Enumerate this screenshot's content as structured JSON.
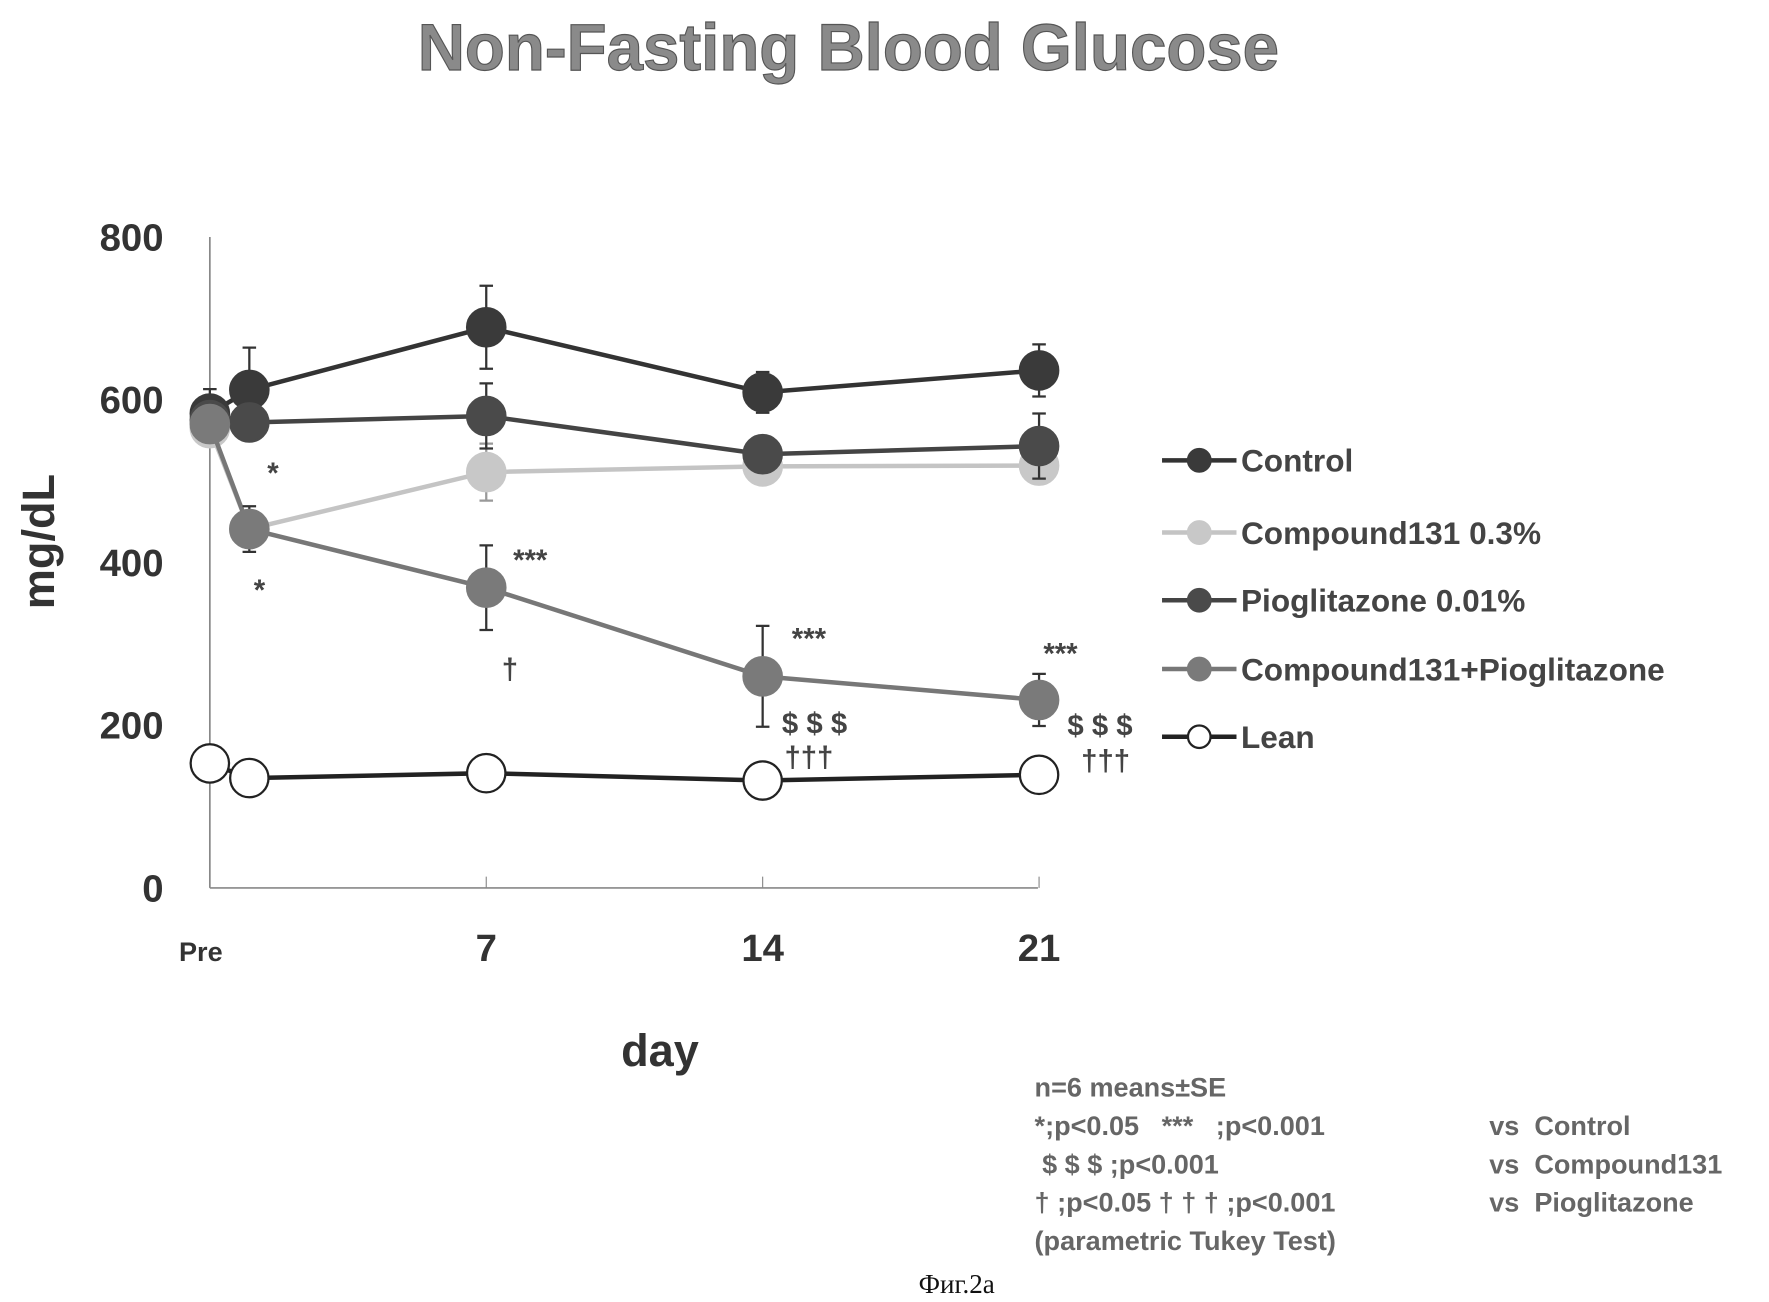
{
  "chart_data": {
    "type": "line",
    "title": "Non-Fasting Blood Glucose",
    "xlabel": "day",
    "ylabel": "mg/dL",
    "ylim": [
      0,
      800
    ],
    "yticks": [
      "0",
      "200",
      "400",
      "600",
      "800"
    ],
    "x": [
      0,
      1,
      7,
      14,
      21
    ],
    "xticks": [
      {
        "value": 0,
        "label": "Pre"
      },
      {
        "value": 7,
        "label": "7"
      },
      {
        "value": 14,
        "label": "14"
      },
      {
        "value": 21,
        "label": "21"
      }
    ],
    "legend_position": "right",
    "series": [
      {
        "name": "Control",
        "color": "#333333",
        "fill": "#3a3a3a",
        "values": [
          583,
          612,
          689,
          609,
          636
        ],
        "errors": [
          30,
          52,
          51,
          25,
          32
        ]
      },
      {
        "name": "Compound131   0.3%",
        "color": "#c4c4c4",
        "fill": "#c8c8c8",
        "values": [
          565,
          441,
          511,
          518,
          519
        ],
        "errors": [
          0,
          0,
          35,
          15,
          15
        ]
      },
      {
        "name": "Pioglitazone  0.01%",
        "color": "#444444",
        "fill": "#4a4a4a",
        "values": [
          575,
          572,
          580,
          533,
          543
        ],
        "errors": [
          0,
          0,
          40,
          20,
          40
        ]
      },
      {
        "name": "Compound131+Pioglitazone",
        "color": "#777777",
        "fill": "#7a7a7a",
        "values": [
          570,
          441,
          369,
          260,
          231
        ],
        "errors": [
          0,
          28,
          52,
          62,
          32
        ]
      },
      {
        "name": "Lean",
        "color": "#222222",
        "fill": "#ffffff",
        "values": [
          153,
          135,
          141,
          132,
          139
        ],
        "errors": [
          0,
          0,
          0,
          0,
          0
        ]
      }
    ],
    "annotations": [
      {
        "text": "*",
        "x": 1,
        "series": "Compound131   0.3%",
        "pos": "above"
      },
      {
        "text": "*",
        "x": 1,
        "series": "Compound131+Pioglitazone",
        "pos": "below"
      },
      {
        "text": "***",
        "x": 7,
        "pos": "above"
      },
      {
        "text": "†",
        "x": 7,
        "pos": "below"
      },
      {
        "text": "***",
        "x": 14,
        "pos": "above"
      },
      {
        "text": "$ $ $",
        "x": 14,
        "pos": "below"
      },
      {
        "text": "†††",
        "x": 14,
        "pos": "below2"
      },
      {
        "text": "***",
        "x": 21,
        "pos": "above"
      },
      {
        "text": "$ $ $",
        "x": 21,
        "pos": "below"
      },
      {
        "text": "†††",
        "x": 21,
        "pos": "below2"
      }
    ]
  },
  "notes": {
    "line1": "n=6 means±SE",
    "line2": "*;p<0.05   ***   ;p<0.001",
    "line3": " $ $ $ ;p<0.001",
    "line4": "† ;p<0.05 † † † ;p<0.001",
    "line5": "(parametric Tukey Test)",
    "vs1": "vs  Control",
    "vs2": "vs  Compound131",
    "vs3": "vs  Pioglitazone"
  },
  "figure_label": "Фиг.2а"
}
